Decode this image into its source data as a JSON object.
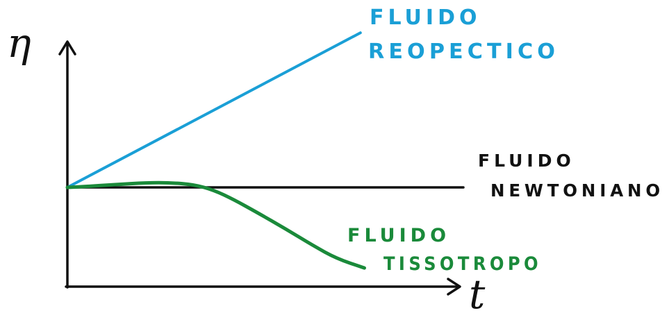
{
  "chart_data": {
    "type": "line",
    "xlabel": "t",
    "ylabel": "η",
    "grid": false,
    "legend": "direct labels",
    "series": [
      {
        "name": "FLUIDO REOPECTICO",
        "label_lines": [
          "FLUIDO",
          "REOPECTICO"
        ],
        "color": "#1a9fd6",
        "x": [
          0,
          0.74
        ],
        "y": [
          1.0,
          2.65
        ]
      },
      {
        "name": "FLUIDO NEWTONIANO",
        "label_lines": [
          "FLUIDO",
          "NEWTONIANO"
        ],
        "color": "#111111",
        "x": [
          0,
          1.0
        ],
        "y": [
          1.0,
          1.0
        ]
      },
      {
        "name": "FLUIDO TISSOTROPO",
        "label_lines": [
          "FLUIDO",
          "TISSOTROPO"
        ],
        "color": "#1a8a3a",
        "x": [
          0,
          0.05,
          0.12,
          0.2,
          0.26,
          0.32,
          0.37,
          0.42,
          0.48,
          0.55,
          0.62,
          0.68,
          0.75
        ],
        "y": [
          1.0,
          1.01,
          1.03,
          1.05,
          1.05,
          1.03,
          0.97,
          0.87,
          0.73,
          0.56,
          0.38,
          0.24,
          0.14
        ]
      }
    ]
  }
}
